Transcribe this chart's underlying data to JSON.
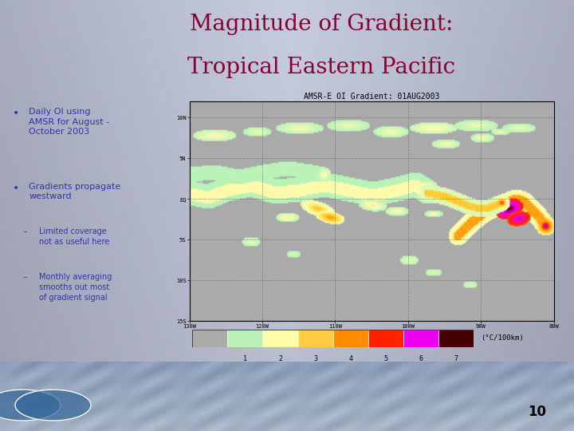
{
  "title_line1": "Magnitude of Gradient:",
  "title_line2": "Tropical Eastern Pacific",
  "title_color": "#8B0030",
  "title_fontsize": 20,
  "bullet_color": "#3333aa",
  "map_title": "AMSR-E OI Gradient: 01AUG2003",
  "colorbar_colors": [
    "#aaaaaa",
    "#b8f0b8",
    "#ffffaa",
    "#ffcc44",
    "#ff8c00",
    "#ff2200",
    "#ee00ee",
    "#440000"
  ],
  "colorbar_labels": [
    "1",
    "2",
    "3",
    "4",
    "5",
    "6",
    "7"
  ],
  "colorbar_unit": "(°C/100km)",
  "page_number": "10",
  "map_xlabels": [
    "130W",
    "120W",
    "110W",
    "100W",
    "90W",
    "80W"
  ],
  "map_ylabels": [
    "10N",
    "5N",
    "EQ",
    "5S",
    "10S",
    "15S"
  ],
  "bg_left_color": "#c8cce0",
  "bg_right_color": "#d8dce8",
  "map_box_color": "#f0f0f0"
}
